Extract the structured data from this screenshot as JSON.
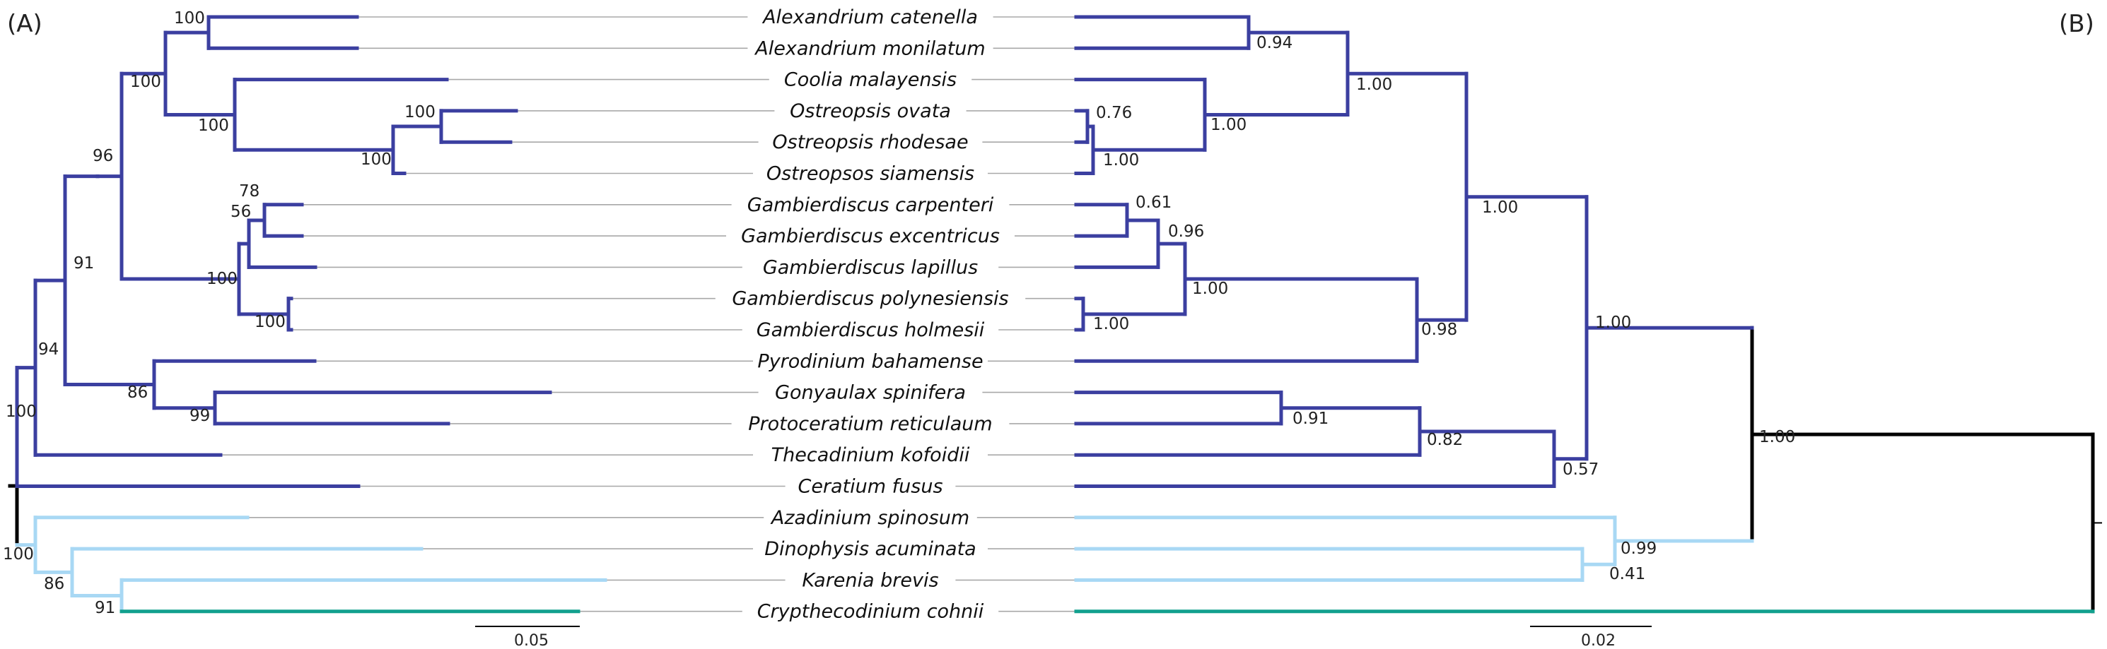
{
  "panels": {
    "left": "(A)",
    "right": "(B)"
  },
  "colors": {
    "dark_blue": "#3b3fa0",
    "light_blue": "#a8d8f4",
    "teal": "#12a08e",
    "black": "#000000",
    "connector_grey": "#a8a8a8"
  },
  "taxa": [
    "Alexandrium catenella",
    "Alexandrium monilatum",
    "Coolia malayensis",
    "Ostreopsis ovata",
    "Ostreopsis rhodesae",
    "Ostreopsos siamensis",
    "Gambierdiscus carpenteri",
    "Gambierdiscus excentricus",
    "Gambierdiscus lapillus",
    "Gambierdiscus polynesiensis",
    "Gambierdiscus holmesii",
    "Pyrodinium bahamense",
    "Gonyaulax spinifera",
    "Protoceratium reticulaum",
    "Thecadinium kofoidii",
    "Ceratium fusus",
    "Azadinium spinosum",
    "Dinophysis acuminata",
    "Karenia brevis",
    "Crypthecodinium cohnii"
  ],
  "tree_a_support": {
    "alex": "100",
    "coolia_ostreopsis": "100",
    "ostreopsis_ovata_rhodesae": "100",
    "ostreopsis": "100",
    "gonyaulacaceae_core": "100",
    "core_gonyaulacales": "96",
    "gamb_carp_exc": "78",
    "gamb_lapillus_group": "56",
    "gambierdiscus": "100",
    "gamb_poly_holm": "100",
    "with_pyrodinium_group": "91",
    "gonyaulax_protoceratium_pyrodinium": "86",
    "gonyaulax_protoceratium": "99",
    "with_thecadinium": "94",
    "dark_blue_clade": "100",
    "light_blue_clade": "100",
    "dinophysis_karenia": "86",
    "karenia_crypthecodinium": "91"
  },
  "tree_b_support": {
    "alex": "0.94",
    "ostreopsis_ovata_rhodesae": "0.76",
    "ostreopsis": "1.00",
    "coolia_ostreopsis": "1.00",
    "alex_ostreopsis": "1.00",
    "gamb_carp_exc": "0.61",
    "gamb_lapillus_group": "0.96",
    "gamb_poly_holm": "1.00",
    "gambierdiscus": "1.00",
    "with_pyrodinium": "0.98",
    "big_core": "1.00",
    "gonyaulax_protoceratium": "0.91",
    "with_thecadinium": "0.82",
    "with_ceratium": "0.57",
    "dark_blue_clade": "1.00",
    "root_split": "1.00",
    "light_blue_clade": "0.99",
    "dinophysis_karenia": "0.41"
  },
  "scale_bars": {
    "left": "0.05",
    "right": "0.02"
  }
}
